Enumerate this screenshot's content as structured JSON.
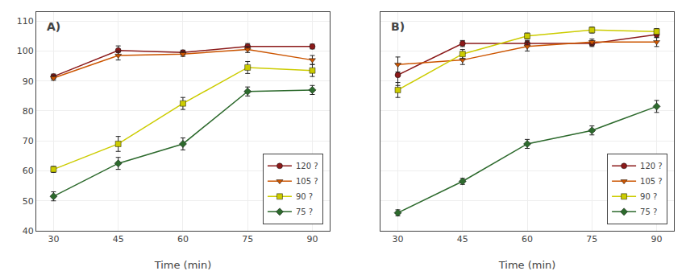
{
  "chart_data": [
    {
      "type": "line",
      "title": "A)",
      "xlabel": "Time (min)",
      "x": [
        30,
        45,
        60,
        75,
        90
      ],
      "xlim": [
        26,
        94
      ],
      "xticks": [
        30,
        45,
        60,
        75,
        90
      ],
      "ylim": [
        40,
        113
      ],
      "yticks": [
        40,
        50,
        60,
        70,
        80,
        90,
        100,
        110
      ],
      "grid": true,
      "legend": "lower right",
      "series": [
        {
          "name": "120 ?",
          "color": "#8B1A1A",
          "marker": "circle",
          "values": [
            91.5,
            100.2,
            99.5,
            101.5,
            101.5
          ],
          "yerr": [
            0.8,
            1.5,
            0.8,
            1.0,
            0.8
          ]
        },
        {
          "name": "105 ?",
          "color": "#CC5500",
          "marker": "triangle-down",
          "values": [
            91.0,
            98.5,
            99.0,
            100.5,
            97.0
          ],
          "yerr": [
            0.8,
            1.5,
            0.8,
            1.0,
            1.5
          ]
        },
        {
          "name": "90 ?",
          "color": "#CCCC00",
          "marker": "square",
          "values": [
            60.5,
            69.0,
            82.5,
            94.5,
            93.5
          ],
          "yerr": [
            1.0,
            2.5,
            2.0,
            2.0,
            2.0
          ]
        },
        {
          "name": "75 ?",
          "color": "#2D6A2D",
          "marker": "diamond",
          "values": [
            51.5,
            62.5,
            69.0,
            86.5,
            87.0
          ],
          "yerr": [
            1.5,
            2.0,
            2.0,
            1.5,
            1.5
          ]
        }
      ]
    },
    {
      "type": "line",
      "title": "B)",
      "xlabel": "Time (min)",
      "x": [
        30,
        45,
        60,
        75,
        90
      ],
      "xlim": [
        26,
        94
      ],
      "xticks": [
        30,
        45,
        60,
        75,
        90
      ],
      "ylim": [
        40,
        113
      ],
      "yticks": [
        40,
        50,
        60,
        70,
        80,
        90,
        100,
        110
      ],
      "grid": true,
      "legend": "lower right",
      "tick_labels": "x",
      "series": [
        {
          "name": "120 ?",
          "color": "#8B1A1A",
          "marker": "circle",
          "values": [
            92.0,
            102.5,
            102.5,
            102.5,
            105.5
          ],
          "yerr": [
            3.5,
            1.0,
            1.0,
            1.0,
            1.0
          ]
        },
        {
          "name": "105 ?",
          "color": "#CC5500",
          "marker": "triangle-down",
          "values": [
            95.5,
            97.0,
            101.5,
            103.0,
            103.0
          ],
          "yerr": [
            2.5,
            1.5,
            1.5,
            1.0,
            1.5
          ]
        },
        {
          "name": "90 ?",
          "color": "#CCCC00",
          "marker": "square",
          "values": [
            87.0,
            99.0,
            105.0,
            107.0,
            106.5
          ],
          "yerr": [
            2.5,
            1.5,
            1.0,
            1.0,
            1.0
          ]
        },
        {
          "name": "75 ?",
          "color": "#2D6A2D",
          "marker": "diamond",
          "values": [
            46.0,
            56.5,
            69.0,
            73.5,
            81.5
          ],
          "yerr": [
            1.0,
            1.0,
            1.5,
            1.5,
            2.0
          ]
        }
      ]
    }
  ]
}
